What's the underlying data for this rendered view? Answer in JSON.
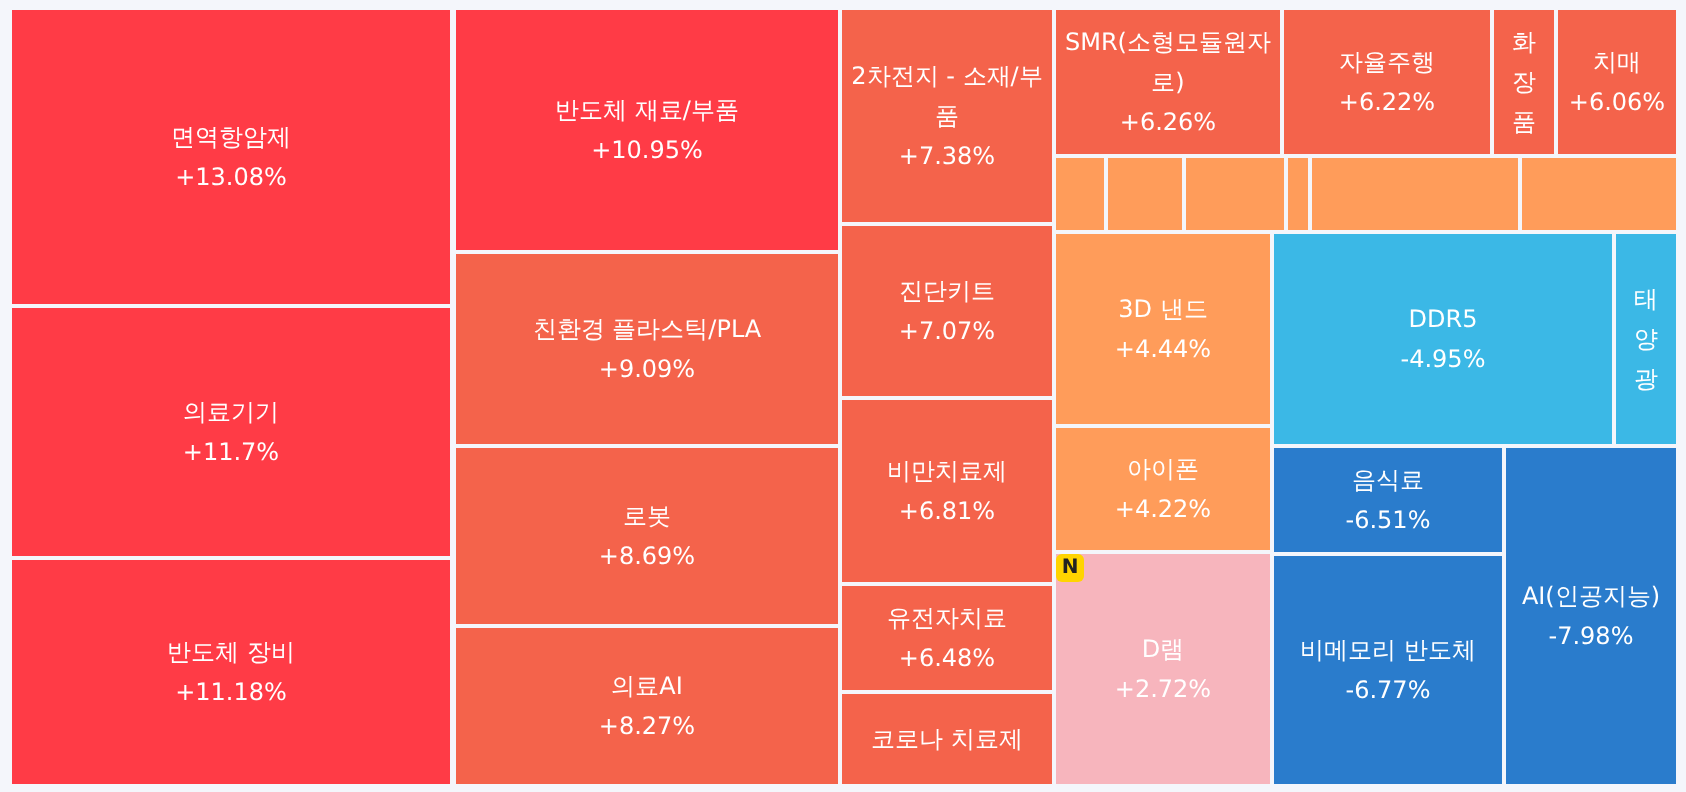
{
  "chart_data": {
    "type": "other",
    "categories": [
      "면역항암제",
      "의료기기",
      "반도체 장비",
      "반도체 재료/부품",
      "친환경 플라스틱/PLA",
      "로봇",
      "의료AI",
      "2차전지 - 소재/부품",
      "진단키트",
      "비만치료제",
      "유전자치료",
      "코로나 치료제",
      "SMR(소형모듈원자로)",
      "자율주행",
      "화장품",
      "치매",
      null,
      null,
      null,
      null,
      null,
      null,
      "3D 낸드",
      "아이폰",
      "D램",
      "DDR5",
      "태양광",
      "음식료",
      "비메모리 반도체",
      "AI(인공지능)"
    ],
    "values": [
      13.08,
      11.7,
      11.18,
      10.95,
      9.09,
      8.69,
      8.27,
      7.38,
      7.07,
      6.81,
      6.48,
      null,
      6.26,
      6.22,
      null,
      6.06,
      null,
      null,
      null,
      null,
      null,
      null,
      4.44,
      4.22,
      2.72,
      -4.95,
      null,
      -6.51,
      -6.77,
      -7.98
    ],
    "colors": [
      "#ff3b46",
      "#ff3b46",
      "#ff3b46",
      "#ff3b46",
      "#f4634b",
      "#f4634b",
      "#f4634b",
      "#f4634b",
      "#f4634b",
      "#f4634b",
      "#f4634b",
      "#f4634b",
      "#f4634b",
      "#f4634b",
      "#f4634b",
      "#f4634b",
      "#ff9c5a",
      "#ff9c5a",
      "#ff9c5a",
      "#ff9c5a",
      "#ff9c5a",
      "#ff9c5a",
      "#ff9c5a",
      "#ff9c5a",
      "#f7b5bd",
      "#3bb8e6",
      "#3bb8e6",
      "#2a7ccc",
      "#2a7ccc",
      "#2a7ccc"
    ],
    "value_labels": [
      "+13.08%",
      "+11.7%",
      "+11.18%",
      "+10.95%",
      "+9.09%",
      "+8.69%",
      "+8.27%",
      "+7.38%",
      "+7.07%",
      "+6.81%",
      "+6.48%",
      null,
      "+6.26%",
      "+6.22%",
      null,
      "+6.06%",
      null,
      null,
      null,
      null,
      null,
      null,
      "+4.44%",
      "+4.22%",
      "+2.72%",
      "-4.95%",
      null,
      "-6.51%",
      "-6.77%",
      "-7.98%"
    ],
    "annotations": [
      {
        "text": "N",
        "x": "D램"
      }
    ]
  }
}
